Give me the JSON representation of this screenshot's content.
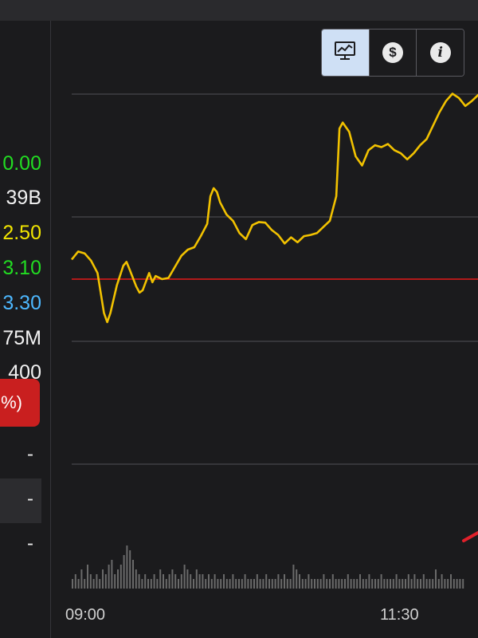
{
  "quote_panel": {
    "rows": [
      {
        "value": "0.00",
        "color": "#22dd22"
      },
      {
        "value": "39B",
        "color": "#f2f2f2"
      },
      {
        "value": "2.50",
        "color": "#f2e600"
      },
      {
        "value": "3.10",
        "color": "#22dd22"
      },
      {
        "value": "3.30",
        "color": "#4db8ff"
      },
      {
        "value": "75M",
        "color": "#f2f2f2"
      },
      {
        "value": "400",
        "color": "#f2f2f2"
      }
    ],
    "change_badge": "%)",
    "dash_rows": [
      "-",
      "-",
      "-"
    ]
  },
  "toolbar": {
    "buttons": [
      {
        "icon": "chart-monitor-icon",
        "active": true
      },
      {
        "icon": "dollar-icon",
        "glyph": "$",
        "active": false
      },
      {
        "icon": "info-icon",
        "glyph": "i",
        "active": false
      }
    ]
  },
  "chart_data": {
    "type": "line",
    "x_tick_labels": [
      "09:00",
      "11:30"
    ],
    "price_series_color": "#f2c200",
    "reference_line_color": "#c81a1a",
    "volume_color": "#6a6a6a",
    "trend_marker_color": "#e0202a",
    "grid": true,
    "price": [
      [
        0,
        0.32
      ],
      [
        2,
        0.45
      ],
      [
        4,
        0.42
      ],
      [
        6,
        0.3
      ],
      [
        8,
        0.1
      ],
      [
        10,
        -0.55
      ],
      [
        11,
        -0.7
      ],
      [
        12,
        -0.55
      ],
      [
        14,
        -0.1
      ],
      [
        16,
        0.22
      ],
      [
        17,
        0.28
      ],
      [
        18,
        0.15
      ],
      [
        20,
        -0.12
      ],
      [
        21,
        -0.22
      ],
      [
        22,
        -0.18
      ],
      [
        24,
        0.1
      ],
      [
        25,
        -0.05
      ],
      [
        26,
        0.05
      ],
      [
        28,
        0.0
      ],
      [
        30,
        0.02
      ],
      [
        32,
        0.2
      ],
      [
        34,
        0.38
      ],
      [
        36,
        0.48
      ],
      [
        38,
        0.52
      ],
      [
        40,
        0.7
      ],
      [
        42,
        0.9
      ],
      [
        43,
        1.35
      ],
      [
        44,
        1.48
      ],
      [
        45,
        1.42
      ],
      [
        46,
        1.25
      ],
      [
        48,
        1.05
      ],
      [
        50,
        0.95
      ],
      [
        52,
        0.75
      ],
      [
        54,
        0.65
      ],
      [
        56,
        0.88
      ],
      [
        58,
        0.93
      ],
      [
        60,
        0.92
      ],
      [
        62,
        0.8
      ],
      [
        64,
        0.72
      ],
      [
        66,
        0.58
      ],
      [
        68,
        0.68
      ],
      [
        70,
        0.6
      ],
      [
        72,
        0.7
      ],
      [
        74,
        0.72
      ],
      [
        76,
        0.75
      ],
      [
        78,
        0.85
      ],
      [
        80,
        0.95
      ],
      [
        82,
        1.35
      ],
      [
        83,
        2.45
      ],
      [
        84,
        2.55
      ],
      [
        86,
        2.4
      ],
      [
        88,
        2.0
      ],
      [
        90,
        1.85
      ],
      [
        92,
        2.1
      ],
      [
        94,
        2.18
      ],
      [
        96,
        2.15
      ],
      [
        98,
        2.2
      ],
      [
        100,
        2.1
      ],
      [
        102,
        2.05
      ],
      [
        104,
        1.95
      ],
      [
        106,
        2.05
      ],
      [
        108,
        2.18
      ],
      [
        110,
        2.28
      ],
      [
        112,
        2.5
      ],
      [
        114,
        2.72
      ],
      [
        116,
        2.9
      ],
      [
        118,
        3.02
      ],
      [
        120,
        2.95
      ],
      [
        122,
        2.82
      ],
      [
        124,
        2.9
      ],
      [
        126,
        3.0
      ],
      [
        128,
        2.96
      ],
      [
        130,
        2.85
      ]
    ],
    "volume": [
      2,
      3,
      2,
      4,
      2,
      5,
      3,
      2,
      3,
      2,
      4,
      3,
      5,
      6,
      3,
      4,
      5,
      7,
      9,
      8,
      6,
      4,
      3,
      2,
      3,
      2,
      2,
      3,
      2,
      4,
      3,
      2,
      3,
      4,
      3,
      2,
      3,
      5,
      4,
      3,
      2,
      4,
      3,
      3,
      2,
      3,
      2,
      3,
      2,
      2,
      3,
      2,
      2,
      3,
      2,
      2,
      2,
      3,
      2,
      2,
      2,
      3,
      2,
      2,
      3,
      2,
      2,
      2,
      3,
      2,
      3,
      2,
      2,
      5,
      4,
      3,
      2,
      2,
      3,
      2,
      2,
      2,
      2,
      3,
      2,
      2,
      3,
      2,
      2,
      2,
      2,
      3,
      2,
      2,
      2,
      3,
      2,
      2,
      3,
      2,
      2,
      2,
      3,
      2,
      2,
      2,
      2,
      3,
      2,
      2,
      2,
      3,
      2,
      3,
      2,
      2,
      3,
      2,
      2,
      2,
      4,
      2,
      3,
      2,
      2,
      3,
      2,
      2,
      2,
      2
    ]
  }
}
